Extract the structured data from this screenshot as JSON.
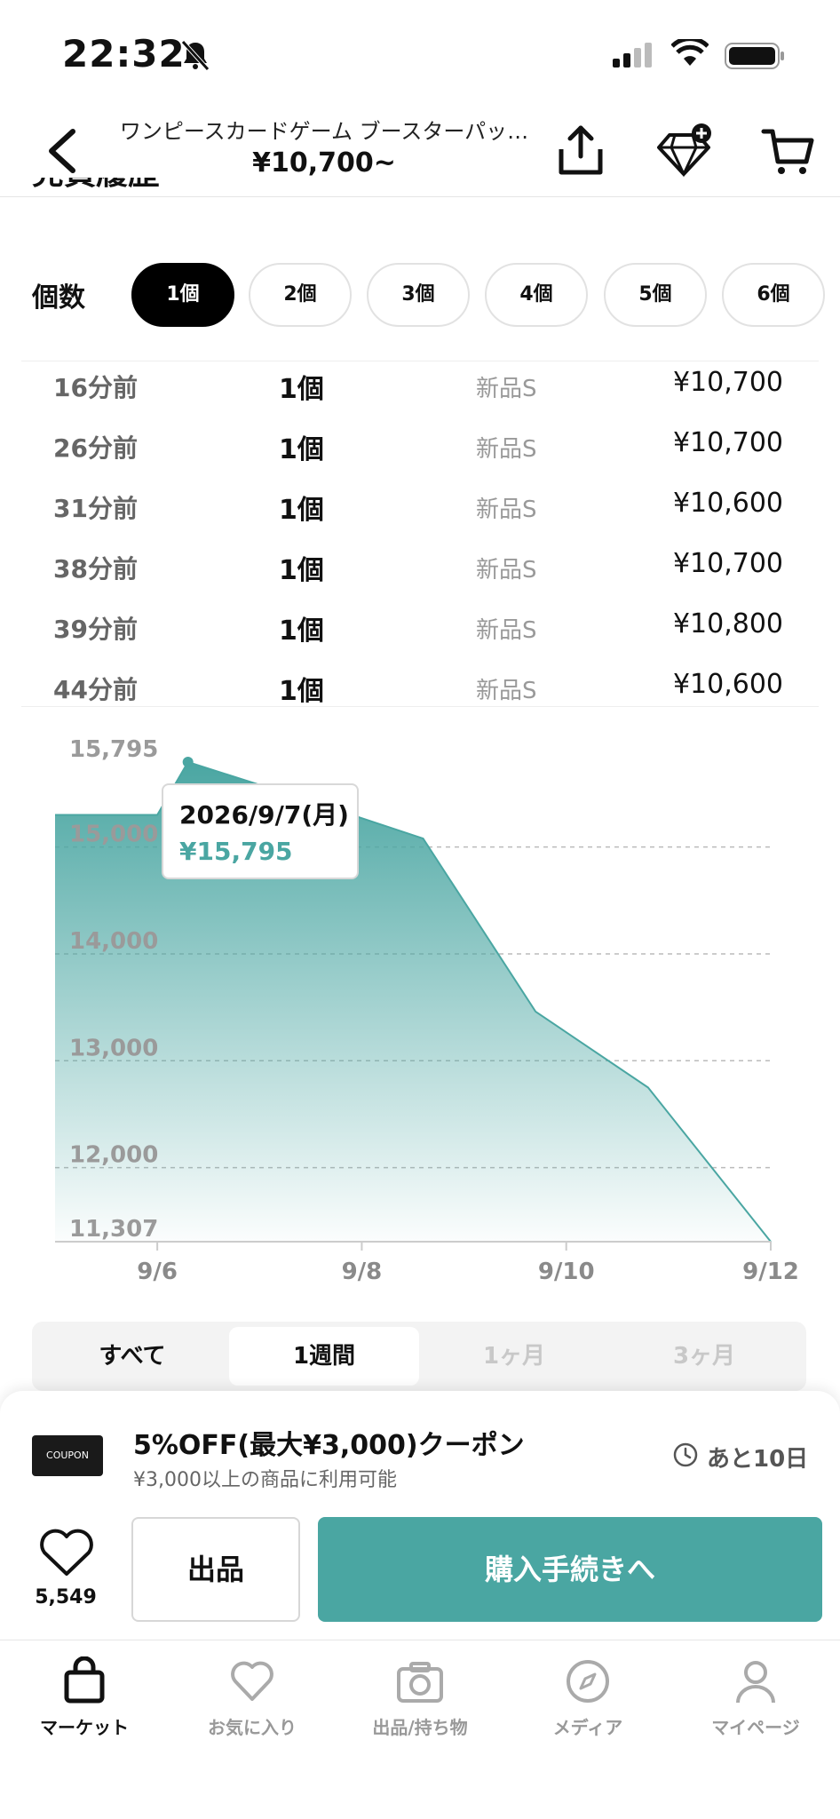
{
  "status_bar": {
    "time": "22:32"
  },
  "header": {
    "title": "ワンピースカードゲーム ブースターパッ…",
    "price": "¥10,700~"
  },
  "section_title": "売買履歴",
  "quantity": {
    "label": "個数",
    "options": [
      "1個",
      "2個",
      "3個",
      "4個",
      "5個",
      "6個"
    ],
    "selected": "1個"
  },
  "history": [
    {
      "time": "16分前",
      "qty": "1個",
      "condition": "新品S",
      "price": "¥10,700"
    },
    {
      "time": "26分前",
      "qty": "1個",
      "condition": "新品S",
      "price": "¥10,700"
    },
    {
      "time": "31分前",
      "qty": "1個",
      "condition": "新品S",
      "price": "¥10,600"
    },
    {
      "time": "38分前",
      "qty": "1個",
      "condition": "新品S",
      "price": "¥10,700"
    },
    {
      "time": "39分前",
      "qty": "1個",
      "condition": "新品S",
      "price": "¥10,800"
    },
    {
      "time": "44分前",
      "qty": "1個",
      "condition": "新品S",
      "price": "¥10,600"
    }
  ],
  "chart_data": {
    "type": "area",
    "x_ticks": [
      "9/6",
      "9/8",
      "9/10",
      "9/12"
    ],
    "y_ticks": [
      "15,795",
      "15,000",
      "14,000",
      "13,000",
      "12,000",
      "11,307"
    ],
    "ylim": [
      11307,
      15795
    ],
    "grid": true,
    "points": [
      {
        "x": "9/5",
        "y": 15300
      },
      {
        "x": "9/6",
        "y": 15300
      },
      {
        "x": "9/6.3",
        "y": 15795
      },
      {
        "x": "9/7.4",
        "y": 15460
      },
      {
        "x": "9/8.6",
        "y": 15080
      },
      {
        "x": "9/9.7",
        "y": 13460
      },
      {
        "x": "9/10.8",
        "y": 12750
      },
      {
        "x": "9/12",
        "y": 11307
      }
    ],
    "color": "#4aa6a2",
    "tooltip": {
      "date": "2026/9/7(月)",
      "value": "¥15,795"
    }
  },
  "range_tabs": {
    "items": [
      "すべて",
      "1週間",
      "1ヶ月",
      "3ヶ月"
    ],
    "selected": "1週間"
  },
  "coupon": {
    "image_text": "COUPON",
    "title": "5%OFF(最大¥3,000)クーポン",
    "subtitle": "¥3,000以上の商品に利用可能",
    "remaining": "あと10日"
  },
  "actions": {
    "like_count": "5,549",
    "sell_label": "出品",
    "buy_label": "購入手続きへ"
  },
  "tabbar": [
    {
      "label": "マーケット",
      "icon": "bag-icon",
      "active": true
    },
    {
      "label": "お気に入り",
      "icon": "heart-icon",
      "active": false
    },
    {
      "label": "出品/持ち物",
      "icon": "camera-icon",
      "active": false
    },
    {
      "label": "メディア",
      "icon": "compass-icon",
      "active": false
    },
    {
      "label": "マイページ",
      "icon": "person-icon",
      "active": false
    }
  ],
  "colors": {
    "accent": "#4aa6a2",
    "dark": "#000000",
    "muted": "#999999"
  }
}
